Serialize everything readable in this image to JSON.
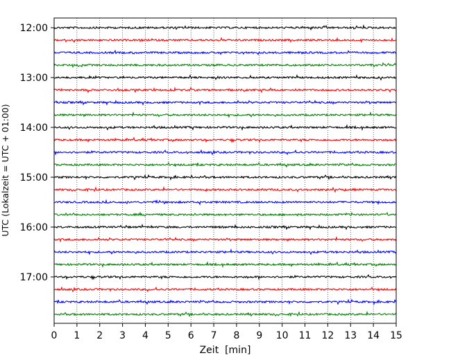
{
  "chart_data": {
    "type": "line",
    "xlabel": "Zeit  [min]",
    "ylabel": "UTC (Lokalzeit = UTC + 01:00)",
    "xlim": [
      0,
      15
    ],
    "x_ticks": [
      0,
      1,
      2,
      3,
      4,
      5,
      6,
      7,
      8,
      9,
      10,
      11,
      12,
      13,
      14,
      15
    ],
    "x_tick_labels": [
      "0",
      "1",
      "2",
      "3",
      "4",
      "5",
      "6",
      "7",
      "8",
      "9",
      "10",
      "11",
      "12",
      "13",
      "14",
      "15"
    ],
    "y_tick_labels": [
      "12:00",
      "13:00",
      "14:00",
      "15:00",
      "16:00",
      "17:00"
    ],
    "grid": "vertical-dotted",
    "trace_colors": [
      "#000000",
      "#ff0000",
      "#0000ff",
      "#008000"
    ],
    "series": [
      {
        "start": "12:00",
        "color": "#000000"
      },
      {
        "start": "12:15",
        "color": "#ff0000"
      },
      {
        "start": "12:30",
        "color": "#0000ff"
      },
      {
        "start": "12:45",
        "color": "#008000"
      },
      {
        "start": "13:00",
        "color": "#000000"
      },
      {
        "start": "13:15",
        "color": "#ff0000"
      },
      {
        "start": "13:30",
        "color": "#0000ff"
      },
      {
        "start": "13:45",
        "color": "#008000"
      },
      {
        "start": "14:00",
        "color": "#000000"
      },
      {
        "start": "14:15",
        "color": "#ff0000"
      },
      {
        "start": "14:30",
        "color": "#0000ff"
      },
      {
        "start": "14:45",
        "color": "#008000"
      },
      {
        "start": "15:00",
        "color": "#000000"
      },
      {
        "start": "15:15",
        "color": "#ff0000"
      },
      {
        "start": "15:30",
        "color": "#0000ff"
      },
      {
        "start": "15:45",
        "color": "#008000"
      },
      {
        "start": "16:00",
        "color": "#000000"
      },
      {
        "start": "16:15",
        "color": "#ff0000"
      },
      {
        "start": "16:30",
        "color": "#0000ff"
      },
      {
        "start": "16:45",
        "color": "#008000"
      },
      {
        "start": "17:00",
        "color": "#000000"
      },
      {
        "start": "17:15",
        "color": "#ff0000"
      },
      {
        "start": "17:30",
        "color": "#0000ff"
      },
      {
        "start": "17:45",
        "color": "#008000"
      }
    ]
  }
}
